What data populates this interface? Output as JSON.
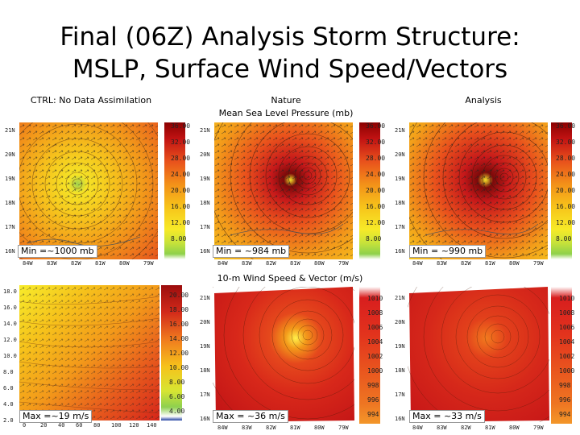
{
  "title": {
    "line1": "Final (06Z) Analysis Storm Structure:",
    "line2": "MSLP, Surface Wind Speed/Vectors"
  },
  "headers": {
    "ctrl": "CTRL: No Data Assimilation",
    "nature_line1": "Nature",
    "nature_line2": "Mean Sea Level Pressure (mb)",
    "analysis": "Analysis",
    "wind_section": "10-m Wind Speed & Vector (m/s)"
  },
  "mslp_panels": [
    {
      "annotation": "Min =~1000 mb"
    },
    {
      "annotation": "Min = ~984 mb"
    },
    {
      "annotation": "Min = ~990 mb"
    }
  ],
  "wind_panels": [
    {
      "annotation": "Max =~19 m/s"
    },
    {
      "annotation": "Max = ~36 m/s"
    },
    {
      "annotation": "Max = ~33 m/s"
    }
  ],
  "mslp_colorbar_ticks": [
    "36.00",
    "32.00",
    "28.00",
    "24.00",
    "20.00",
    "16.00",
    "12.00",
    "8.00",
    "4.00"
  ],
  "wind_colorbar_ticks": [
    "1010",
    "1008",
    "1006",
    "1004",
    "1002",
    "1000",
    "998",
    "996",
    "994"
  ],
  "ctrl_wind_colorbar_ticks": [
    "20.00",
    "18.00",
    "16.00",
    "14.00",
    "12.00",
    "10.00",
    "8.00",
    "6.00",
    "4.00"
  ],
  "lat_labels": [
    "21N",
    "20N",
    "19N",
    "18N",
    "17N",
    "16N"
  ],
  "lon_labels": [
    "84W",
    "83W",
    "82W",
    "81W",
    "80W",
    "79W"
  ],
  "ctrl_wind_lat_labels": [
    "18.0",
    "16.0",
    "14.0",
    "12.0",
    "10.0",
    "8.0",
    "6.0",
    "4.0",
    "2.0"
  ],
  "ctrl_wind_lon_labels": [
    "0",
    "20",
    "40",
    "60",
    "80",
    "100",
    "120",
    "140"
  ]
}
